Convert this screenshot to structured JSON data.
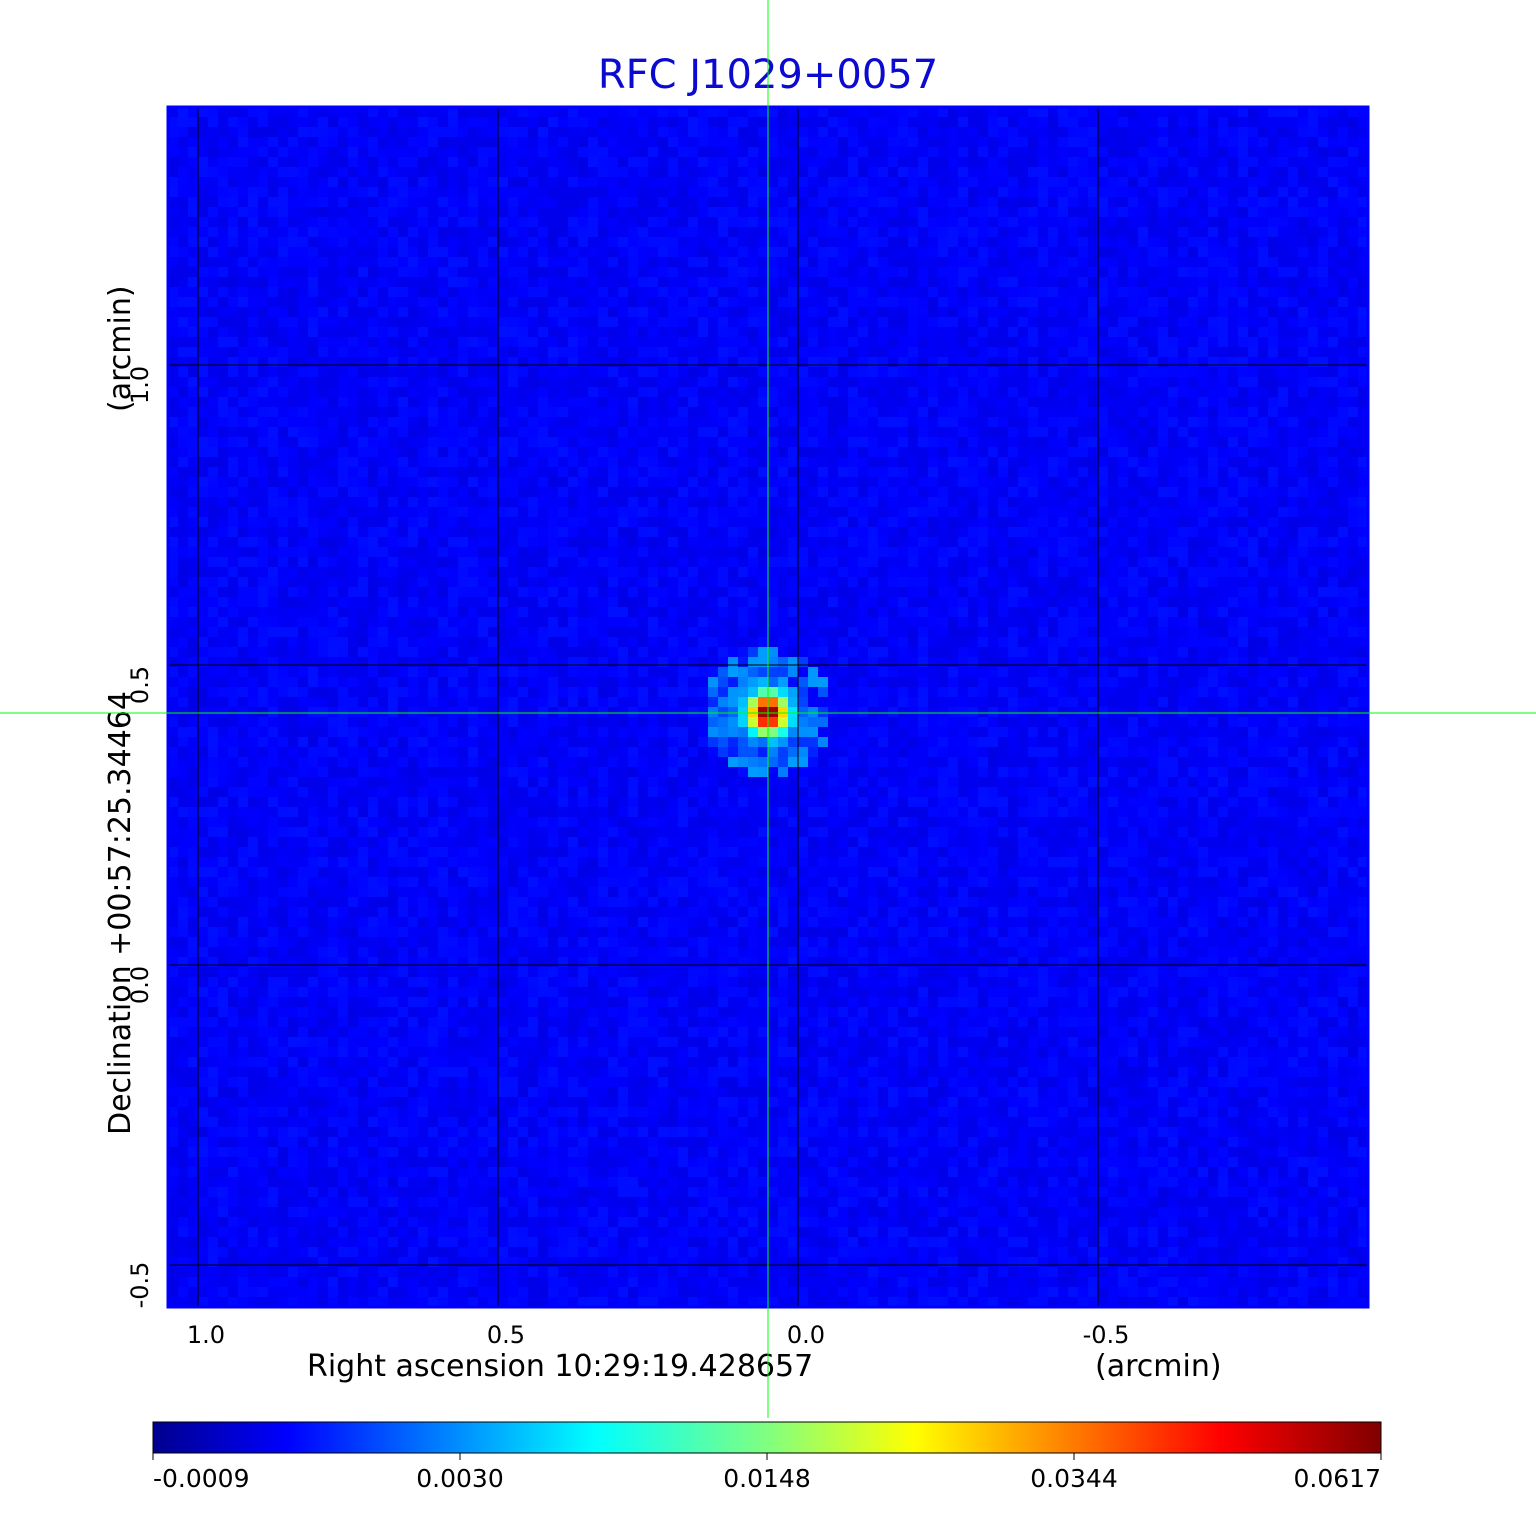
{
  "chart_data": {
    "type": "heatmap",
    "title": "RFC J1029+0057",
    "xlabel": "Right ascension  10:29:19.428657",
    "xunit": "(arcmin)",
    "ylabel": "Declination  +00:57:25.34464",
    "yunit": "(arcmin)",
    "xlim": [
      1.05,
      -0.95
    ],
    "ylim": [
      -0.57,
      1.43
    ],
    "x_ticks": [
      {
        "value": 1.0,
        "label": "1.0"
      },
      {
        "value": 0.5,
        "label": "0.5"
      },
      {
        "value": 0.0,
        "label": "0.0"
      },
      {
        "value": -0.5,
        "label": "-0.5"
      }
    ],
    "y_ticks": [
      {
        "value": -0.5,
        "label": "-0.5"
      },
      {
        "value": 0.0,
        "label": "0.0"
      },
      {
        "value": 0.5,
        "label": "0.5"
      },
      {
        "value": 1.0,
        "label": "1.0"
      }
    ],
    "grid": true,
    "source": {
      "x": 0.05,
      "y": 0.42,
      "peak": 0.0617
    },
    "crosshair": {
      "x": 0.05,
      "y": 0.42,
      "color": "#00ff00"
    },
    "background_level": 0.0,
    "colorbar": {
      "colormap": "jet",
      "min": -0.0009,
      "max": 0.0617,
      "tick_labels": [
        "-0.0009",
        "0.0030",
        "0.0148",
        "0.0344",
        "0.0617"
      ]
    },
    "colors": {
      "title": "#0a0ad0",
      "grid": "#000000",
      "frame": "#0000ff"
    }
  }
}
